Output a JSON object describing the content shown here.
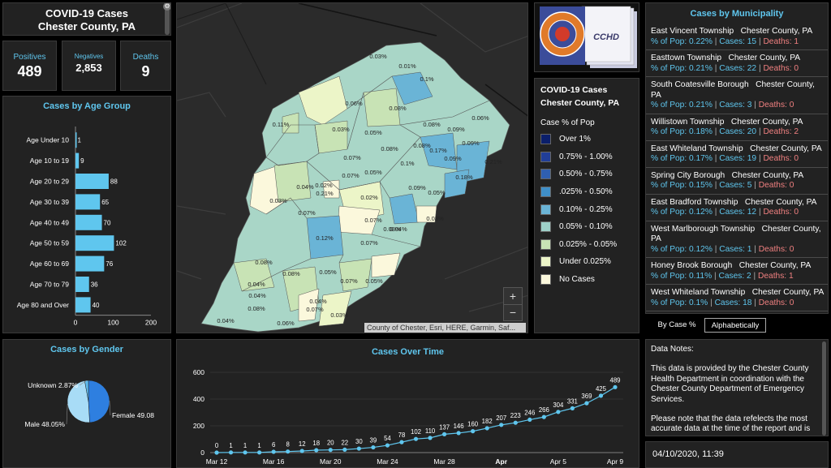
{
  "header": {
    "title": "COVID-19 Cases",
    "subtitle": "Chester County, PA"
  },
  "stats": [
    {
      "label": "Positives",
      "value": "489"
    },
    {
      "label": "Negatives",
      "value": "2,853"
    },
    {
      "label": "Deaths",
      "value": "9"
    }
  ],
  "age_panel": {
    "title": "Cases by Age Group"
  },
  "gender_panel": {
    "title": "Cases by Gender"
  },
  "time_panel": {
    "title": "Cases Over Time"
  },
  "muni_panel": {
    "title": "Cases by Municipality"
  },
  "map": {
    "attribution": "County of Chester, Esri, HERE, Garmin, Saf...",
    "zoom_in": "+",
    "zoom_out": "−",
    "labels": [
      "0.03%",
      "0.01%",
      "0.1%",
      "0.06%",
      "0.08%",
      "0.11%",
      "0.03%",
      "0.05%",
      "0.08%",
      "0.09%",
      "0.06%",
      "0.09%",
      "0.08%",
      "0.07%",
      "0.08%",
      "0.17%",
      "0.09%",
      "0.21%",
      "0.05%",
      "0.1%",
      "0.18%",
      "0.04%",
      "0.02%",
      "0.07%",
      "0.21%",
      "0.02%",
      "0.09%",
      "0.05%",
      "0.03%",
      "0.03%",
      "0.07%",
      "0.07%",
      "0.04%",
      "0.12%",
      "0.08%",
      "0.08%",
      "0.07%",
      "0.05%",
      "0.08%",
      "0.05%",
      "0.04%",
      "0.07%",
      "0.04%",
      "0.08%",
      "0.04%",
      "0.07%",
      "0.03%",
      "0.04%",
      "0.06%"
    ]
  },
  "seal": {
    "caption": "CCHD",
    "ring_text": "CHESTER COUNTY"
  },
  "legend": {
    "title": "COVID-19 Cases",
    "subtitle": "Chester County, PA",
    "heading": "Case % of Pop",
    "items": [
      {
        "label": "Over 1%",
        "color": "#0b1f6b"
      },
      {
        "label": "0.75% - 1.00%",
        "color": "#213e98"
      },
      {
        "label": "0.50% - 0.75%",
        "color": "#2f5fb1"
      },
      {
        "label": ".025% - 0.50%",
        "color": "#3f8fc8"
      },
      {
        "label": "0.10% - 0.25%",
        "color": "#6ab4d6"
      },
      {
        "label": "0.05% - 0.10%",
        "color": "#9ed0c8"
      },
      {
        "label": "0.025% - 0.05%",
        "color": "#c8e3b5"
      },
      {
        "label": "Under 0.025%",
        "color": "#ecf5c8"
      },
      {
        "label": "No Cases",
        "color": "#fbf8dc"
      }
    ]
  },
  "municipalities": [
    {
      "name": "East Vincent Township",
      "county": "Chester County, PA",
      "pct": "% of Pop: 0.22%",
      "cases": "Cases: 15",
      "deaths": "Deaths: 1"
    },
    {
      "name": "Easttown Township",
      "county": "Chester County, PA",
      "pct": "% of Pop: 0.21%",
      "cases": "Cases: 22",
      "deaths": "Deaths: 0"
    },
    {
      "name": "South Coatesville Borough",
      "county": "Chester County, PA",
      "pct": "% of Pop: 0.21%",
      "cases": "Cases: 3",
      "deaths": "Deaths: 0"
    },
    {
      "name": "Willistown Township",
      "county": "Chester County, PA",
      "pct": "% of Pop: 0.18%",
      "cases": "Cases: 20",
      "deaths": "Deaths: 2"
    },
    {
      "name": "East Whiteland Township",
      "county": "Chester County, PA",
      "pct": "% of Pop: 0.17%",
      "cases": "Cases: 19",
      "deaths": "Deaths: 0"
    },
    {
      "name": "Spring City Borough",
      "county": "Chester County, PA",
      "pct": "% of Pop: 0.15%",
      "cases": "Cases: 5",
      "deaths": "Deaths: 0"
    },
    {
      "name": "East Bradford Township",
      "county": "Chester County, PA",
      "pct": "% of Pop: 0.12%",
      "cases": "Cases: 12",
      "deaths": "Deaths: 0"
    },
    {
      "name": "West Marlborough Township",
      "county": "Chester County, PA",
      "pct": "% of Pop: 0.12%",
      "cases": "Cases: 1",
      "deaths": "Deaths: 0"
    },
    {
      "name": "Honey Brook Borough",
      "county": "Chester County, PA",
      "pct": "% of Pop: 0.11%",
      "cases": "Cases: 2",
      "deaths": "Deaths: 1"
    },
    {
      "name": "West Whiteland Township",
      "county": "Chester County, PA",
      "pct": "% of Pop: 0.1%",
      "cases": "Cases: 18",
      "deaths": "Deaths: 0"
    }
  ],
  "tabs": [
    {
      "label": "By Case %"
    },
    {
      "label": "Alphabetically"
    }
  ],
  "notes": {
    "heading": "Data Notes:",
    "p1": "This data is provided by the Chester County Health Department in coordination with the Chester County Department of Emergency Services.",
    "p2": "Please note that the data refelects the most accurate data at the time of the report and is"
  },
  "timestamp": "04/10/2020, 11:39",
  "colors": {
    "accent": "#5fc6ee",
    "bar": "#5fc6ee",
    "deaths_red": "#f08080"
  },
  "chart_data": [
    {
      "type": "bar",
      "title": "Cases by Age Group",
      "orientation": "horizontal",
      "categories": [
        "Age Under 10",
        "Age 10 to 19",
        "Age 20 to 29",
        "Age 30 to 39",
        "Age 40 to 49",
        "Age 50 to 59",
        "Age 60 to 69",
        "Age 70 to 79",
        "Age 80 and Over"
      ],
      "values": [
        1,
        9,
        88,
        65,
        70,
        102,
        76,
        36,
        40
      ],
      "xlim": [
        0,
        200
      ],
      "xticks": [
        0,
        100,
        200
      ]
    },
    {
      "type": "pie",
      "title": "Cases by Gender",
      "labels": [
        "Female 49.08",
        "Male 48.05%",
        "Unknown 2.87%"
      ],
      "values": [
        49.08,
        48.05,
        2.87
      ],
      "colors": [
        "#2e7fe0",
        "#a8dcf6",
        "#5fbbed"
      ]
    },
    {
      "type": "line",
      "title": "Cases Over Time",
      "x": [
        "Mar 12",
        "Mar 13",
        "Mar 14",
        "Mar 15",
        "Mar 16",
        "Mar 17",
        "Mar 18",
        "Mar 19",
        "Mar 20",
        "Mar 21",
        "Mar 22",
        "Mar 23",
        "Mar 24",
        "Mar 25",
        "Mar 26",
        "Mar 27",
        "Mar 28",
        "Mar 29",
        "Mar 30",
        "Mar 31",
        "Apr 1",
        "Apr 2",
        "Apr 3",
        "Apr 4",
        "Apr 5",
        "Apr 6",
        "Apr 7",
        "Apr 8",
        "Apr 9"
      ],
      "values": [
        0,
        1,
        1,
        1,
        6,
        8,
        12,
        18,
        20,
        22,
        30,
        39,
        54,
        78,
        102,
        110,
        137,
        146,
        160,
        182,
        207,
        223,
        246,
        266,
        304,
        331,
        369,
        425,
        489
      ],
      "ylim": [
        0,
        600
      ],
      "yticks": [
        0,
        200,
        400,
        600
      ],
      "xticks": [
        {
          "index": 0,
          "label": "Mar 12",
          "bold": false
        },
        {
          "index": 4,
          "label": "Mar 16",
          "bold": false
        },
        {
          "index": 8,
          "label": "Mar 20",
          "bold": false
        },
        {
          "index": 12,
          "label": "Mar 24",
          "bold": false
        },
        {
          "index": 16,
          "label": "Mar 28",
          "bold": false
        },
        {
          "index": 20,
          "label": "Apr",
          "bold": true
        },
        {
          "index": 24,
          "label": "Apr 5",
          "bold": false
        },
        {
          "index": 28,
          "label": "Apr 9",
          "bold": false
        }
      ]
    }
  ]
}
